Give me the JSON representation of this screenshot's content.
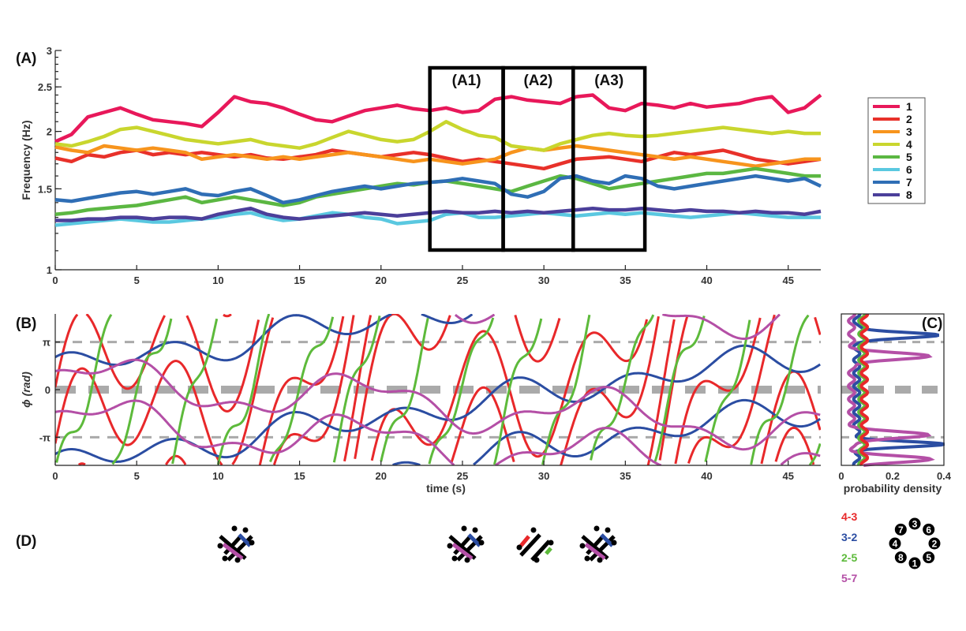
{
  "panels": {
    "A": "(A)",
    "B": "(B)",
    "C": "(C)",
    "D": "(D)"
  },
  "windows": [
    "(A1)",
    "(A2)",
    "(A3)"
  ],
  "chart_data": [
    {
      "id": "A",
      "type": "line",
      "ylabel": "Frequency (Hz)",
      "xlabel": "",
      "yscale": "log",
      "xlim": [
        0,
        47
      ],
      "ylim": [
        1,
        3
      ],
      "xticks": [
        0,
        5,
        10,
        15,
        20,
        25,
        30,
        35,
        40,
        45
      ],
      "yticks": [
        {
          "v": 1,
          "label": "1"
        },
        {
          "v": 1.5,
          "label": "1.5"
        },
        {
          "v": 2,
          "label": "2"
        },
        {
          "v": 2.5,
          "label": "2.5"
        },
        {
          "v": 3,
          "label": "3"
        }
      ],
      "windows": [
        [
          23,
          27.5
        ],
        [
          27.5,
          31.8
        ],
        [
          31.8,
          36.2
        ]
      ],
      "legend_position": "right",
      "series": [
        {
          "name": "1",
          "color": "#e8185a",
          "x": [
            0,
            1,
            2,
            3,
            4,
            5,
            6,
            7,
            8,
            9,
            10,
            11,
            12,
            13,
            14,
            15,
            16,
            17,
            18,
            19,
            20,
            21,
            22,
            23,
            24,
            25,
            26,
            27,
            28,
            29,
            30,
            31,
            32,
            33,
            34,
            35,
            36,
            37,
            38,
            39,
            40,
            41,
            42,
            43,
            44,
            45,
            46,
            47
          ],
          "y": [
            1.9,
            1.97,
            2.15,
            2.2,
            2.25,
            2.18,
            2.12,
            2.1,
            2.08,
            2.05,
            2.2,
            2.38,
            2.32,
            2.3,
            2.25,
            2.18,
            2.12,
            2.1,
            2.16,
            2.22,
            2.25,
            2.28,
            2.24,
            2.22,
            2.25,
            2.2,
            2.22,
            2.35,
            2.38,
            2.34,
            2.32,
            2.3,
            2.38,
            2.4,
            2.25,
            2.22,
            2.3,
            2.28,
            2.25,
            2.3,
            2.26,
            2.28,
            2.3,
            2.35,
            2.38,
            2.2,
            2.25,
            2.4
          ]
        },
        {
          "name": "2",
          "color": "#e8312a",
          "x": [
            0,
            1,
            2,
            3,
            4,
            5,
            6,
            7,
            8,
            9,
            10,
            11,
            12,
            13,
            14,
            15,
            16,
            17,
            18,
            19,
            20,
            21,
            22,
            23,
            24,
            25,
            26,
            27,
            28,
            29,
            30,
            31,
            32,
            33,
            34,
            35,
            36,
            37,
            38,
            39,
            40,
            41,
            42,
            43,
            44,
            45,
            46,
            47
          ],
          "y": [
            1.75,
            1.72,
            1.78,
            1.76,
            1.8,
            1.82,
            1.78,
            1.8,
            1.78,
            1.8,
            1.78,
            1.76,
            1.78,
            1.75,
            1.74,
            1.76,
            1.78,
            1.82,
            1.8,
            1.78,
            1.76,
            1.78,
            1.8,
            1.78,
            1.75,
            1.72,
            1.74,
            1.72,
            1.7,
            1.68,
            1.66,
            1.7,
            1.74,
            1.75,
            1.76,
            1.74,
            1.72,
            1.76,
            1.8,
            1.78,
            1.8,
            1.82,
            1.78,
            1.74,
            1.72,
            1.7,
            1.72,
            1.74
          ]
        },
        {
          "name": "3",
          "color": "#f7941d",
          "x": [
            0,
            1,
            2,
            3,
            4,
            5,
            6,
            7,
            8,
            9,
            10,
            11,
            12,
            13,
            14,
            15,
            16,
            17,
            18,
            19,
            20,
            21,
            22,
            23,
            24,
            25,
            26,
            27,
            28,
            29,
            30,
            31,
            32,
            33,
            34,
            35,
            36,
            37,
            38,
            39,
            40,
            41,
            42,
            43,
            44,
            45,
            46,
            47
          ],
          "y": [
            1.85,
            1.82,
            1.8,
            1.86,
            1.84,
            1.82,
            1.84,
            1.82,
            1.8,
            1.74,
            1.76,
            1.78,
            1.76,
            1.74,
            1.76,
            1.74,
            1.76,
            1.78,
            1.8,
            1.78,
            1.76,
            1.74,
            1.72,
            1.74,
            1.72,
            1.7,
            1.72,
            1.74,
            1.8,
            1.84,
            1.82,
            1.84,
            1.86,
            1.84,
            1.82,
            1.8,
            1.78,
            1.76,
            1.74,
            1.76,
            1.74,
            1.72,
            1.7,
            1.68,
            1.7,
            1.72,
            1.74,
            1.74
          ]
        },
        {
          "name": "4",
          "color": "#c9d62e",
          "x": [
            0,
            1,
            2,
            3,
            4,
            5,
            6,
            7,
            8,
            9,
            10,
            11,
            12,
            13,
            14,
            15,
            16,
            17,
            18,
            19,
            20,
            21,
            22,
            23,
            24,
            25,
            26,
            27,
            28,
            29,
            30,
            31,
            32,
            33,
            34,
            35,
            36,
            37,
            38,
            39,
            40,
            41,
            42,
            43,
            44,
            45,
            46,
            47
          ],
          "y": [
            1.88,
            1.86,
            1.9,
            1.95,
            2.02,
            2.04,
            2.0,
            1.96,
            1.92,
            1.9,
            1.88,
            1.9,
            1.92,
            1.88,
            1.86,
            1.84,
            1.88,
            1.94,
            2.0,
            1.96,
            1.92,
            1.9,
            1.92,
            2.0,
            2.1,
            2.02,
            1.96,
            1.94,
            1.86,
            1.84,
            1.82,
            1.88,
            1.92,
            1.96,
            1.98,
            1.96,
            1.95,
            1.96,
            1.98,
            2.0,
            2.02,
            2.04,
            2.02,
            2.0,
            1.98,
            2.0,
            1.98,
            1.98
          ]
        },
        {
          "name": "5",
          "color": "#5bb742",
          "x": [
            0,
            1,
            2,
            3,
            4,
            5,
            6,
            7,
            8,
            9,
            10,
            11,
            12,
            13,
            14,
            15,
            16,
            17,
            18,
            19,
            20,
            21,
            22,
            23,
            24,
            25,
            26,
            27,
            28,
            29,
            30,
            31,
            32,
            33,
            34,
            35,
            36,
            37,
            38,
            39,
            40,
            41,
            42,
            43,
            44,
            45,
            46,
            47
          ],
          "y": [
            1.32,
            1.33,
            1.35,
            1.36,
            1.37,
            1.38,
            1.4,
            1.42,
            1.44,
            1.4,
            1.42,
            1.44,
            1.42,
            1.4,
            1.38,
            1.4,
            1.44,
            1.46,
            1.48,
            1.5,
            1.52,
            1.54,
            1.53,
            1.55,
            1.56,
            1.54,
            1.52,
            1.5,
            1.48,
            1.52,
            1.56,
            1.6,
            1.58,
            1.54,
            1.5,
            1.52,
            1.54,
            1.56,
            1.58,
            1.6,
            1.62,
            1.62,
            1.64,
            1.66,
            1.64,
            1.62,
            1.6,
            1.6
          ]
        },
        {
          "name": "6",
          "color": "#5ac8e0",
          "x": [
            0,
            1,
            2,
            3,
            4,
            5,
            6,
            7,
            8,
            9,
            10,
            11,
            12,
            13,
            14,
            15,
            16,
            17,
            18,
            19,
            20,
            21,
            22,
            23,
            24,
            25,
            26,
            27,
            28,
            29,
            30,
            31,
            32,
            33,
            34,
            35,
            36,
            37,
            38,
            39,
            40,
            41,
            42,
            43,
            44,
            45,
            46,
            47
          ],
          "y": [
            1.25,
            1.26,
            1.27,
            1.28,
            1.29,
            1.28,
            1.27,
            1.27,
            1.28,
            1.29,
            1.3,
            1.32,
            1.33,
            1.3,
            1.28,
            1.29,
            1.31,
            1.33,
            1.32,
            1.3,
            1.29,
            1.26,
            1.27,
            1.28,
            1.32,
            1.33,
            1.3,
            1.3,
            1.31,
            1.32,
            1.33,
            1.32,
            1.31,
            1.32,
            1.33,
            1.32,
            1.33,
            1.32,
            1.31,
            1.3,
            1.31,
            1.32,
            1.33,
            1.32,
            1.31,
            1.3,
            1.3,
            1.3
          ]
        },
        {
          "name": "7",
          "color": "#2f6eb5",
          "x": [
            0,
            1,
            2,
            3,
            4,
            5,
            6,
            7,
            8,
            9,
            10,
            11,
            12,
            13,
            14,
            15,
            16,
            17,
            18,
            19,
            20,
            21,
            22,
            23,
            24,
            25,
            26,
            27,
            28,
            29,
            30,
            31,
            32,
            33,
            34,
            35,
            36,
            37,
            38,
            39,
            40,
            41,
            42,
            43,
            44,
            45,
            46,
            47
          ],
          "y": [
            1.42,
            1.41,
            1.43,
            1.45,
            1.47,
            1.48,
            1.46,
            1.48,
            1.5,
            1.46,
            1.45,
            1.48,
            1.5,
            1.45,
            1.4,
            1.42,
            1.45,
            1.48,
            1.5,
            1.52,
            1.5,
            1.52,
            1.54,
            1.55,
            1.56,
            1.58,
            1.56,
            1.54,
            1.46,
            1.44,
            1.48,
            1.58,
            1.6,
            1.56,
            1.54,
            1.6,
            1.58,
            1.52,
            1.5,
            1.52,
            1.54,
            1.56,
            1.58,
            1.6,
            1.58,
            1.56,
            1.58,
            1.52
          ]
        },
        {
          "name": "8",
          "color": "#4b3f9a",
          "x": [
            0,
            1,
            2,
            3,
            4,
            5,
            6,
            7,
            8,
            9,
            10,
            11,
            12,
            13,
            14,
            15,
            16,
            17,
            18,
            19,
            20,
            21,
            22,
            23,
            24,
            25,
            26,
            27,
            28,
            29,
            30,
            31,
            32,
            33,
            34,
            35,
            36,
            37,
            38,
            39,
            40,
            41,
            42,
            43,
            44,
            45,
            46,
            47
          ],
          "y": [
            1.28,
            1.28,
            1.29,
            1.29,
            1.3,
            1.3,
            1.29,
            1.3,
            1.3,
            1.29,
            1.32,
            1.34,
            1.36,
            1.32,
            1.3,
            1.29,
            1.3,
            1.31,
            1.32,
            1.33,
            1.32,
            1.31,
            1.32,
            1.33,
            1.34,
            1.33,
            1.33,
            1.34,
            1.33,
            1.34,
            1.33,
            1.34,
            1.35,
            1.36,
            1.35,
            1.35,
            1.36,
            1.35,
            1.34,
            1.35,
            1.34,
            1.34,
            1.33,
            1.34,
            1.33,
            1.33,
            1.32,
            1.34
          ]
        }
      ]
    },
    {
      "id": "B",
      "type": "line",
      "xlabel": "time (s)",
      "ylabel": "ϕ (rad)",
      "xlim": [
        0,
        47
      ],
      "ylim": [
        -5,
        5
      ],
      "xticks": [
        0,
        5,
        10,
        15,
        20,
        25,
        30,
        35,
        40,
        45
      ],
      "yticks": [
        {
          "v": 3.1416,
          "label": "π"
        },
        {
          "v": 0,
          "label": "0"
        },
        {
          "v": -3.1416,
          "label": "-π"
        }
      ],
      "series": [
        {
          "name": "4-3",
          "color": "#e8282a",
          "model": "drift",
          "base": -10.0,
          "rate": 1.3,
          "wobble": [
            [
              3.4,
              1.0,
              0.3
            ],
            [
              6.1,
              0.3,
              1.1
            ]
          ],
          "phase_offsets": [
            0,
            -6.283
          ]
        },
        {
          "name": "3-2",
          "color": "#2b4da2",
          "model": "drift",
          "base": 4.0,
          "rate": 0.16,
          "wobble": [
            [
              0.45,
              0.5,
              0.0
            ],
            [
              0.8,
              0.9,
              1.2
            ]
          ],
          "phase_offsets": [
            -2.6,
            -9.0
          ]
        },
        {
          "name": "2-5",
          "color": "#5dba3b",
          "model": "drift",
          "base": -16.0,
          "rate": 3.05,
          "wobble": [
            [
              0.9,
              2.5,
              0.4
            ],
            [
              0.5,
              1.3,
              2.0
            ]
          ],
          "phase_offsets": [
            0
          ]
        },
        {
          "name": "5-7",
          "color": "#b44fa6",
          "model": "drift",
          "base": 6.0,
          "rate": -0.07,
          "wobble": [
            [
              1.3,
              0.42,
              0.0
            ],
            [
              0.55,
              1.1,
              1.9
            ]
          ],
          "phase_offsets": [
            -5.3,
            2.0
          ]
        }
      ]
    },
    {
      "id": "C",
      "type": "line",
      "xlabel": "probability density",
      "xlim": [
        0,
        0.4
      ],
      "xticks": [
        {
          "v": 0,
          "label": "0"
        },
        {
          "v": 0.2,
          "label": "0.2"
        },
        {
          "v": 0.4,
          "label": "0.4"
        }
      ],
      "series": [
        {
          "name": "3-2",
          "color": "#2b4da2",
          "peaks_at": [
            3.6,
            -3.6
          ],
          "peak": 0.33,
          "width": 0.18,
          "baseline": 0.06
        },
        {
          "name": "5-7",
          "color": "#b44fa6",
          "peaks_at": [
            2.2,
            -4.6,
            -3.0
          ],
          "peak": 0.3,
          "width": 0.22,
          "baseline": 0.04
        },
        {
          "name": "2-5",
          "color": "#5dba3b",
          "peaks_at": [],
          "peak": 0.0,
          "width": 0.1,
          "baseline": 0.08
        },
        {
          "name": "4-3",
          "color": "#e8282a",
          "peaks_at": [],
          "peak": 0.0,
          "width": 0.1,
          "baseline": 0.09
        }
      ]
    }
  ],
  "pairs_legend": [
    {
      "label": "4-3",
      "color": "#e8282a"
    },
    {
      "label": "3-2",
      "color": "#2b4da2"
    },
    {
      "label": "2-5",
      "color": "#5dba3b"
    },
    {
      "label": "5-7",
      "color": "#b44fa6"
    }
  ],
  "node_numbers": [
    "1",
    "2",
    "3",
    "4",
    "5",
    "6",
    "7",
    "8"
  ],
  "diagrams": [
    {
      "highlights": [
        "#b44fa6",
        "#2b4da2"
      ]
    },
    {
      "highlights": [
        "#b44fa6",
        "#2b4da2"
      ]
    },
    {
      "highlights": [
        "#e8282a",
        "#5dba3b"
      ]
    },
    {
      "highlights": [
        "#b44fa6",
        "#2b4da2"
      ]
    }
  ]
}
